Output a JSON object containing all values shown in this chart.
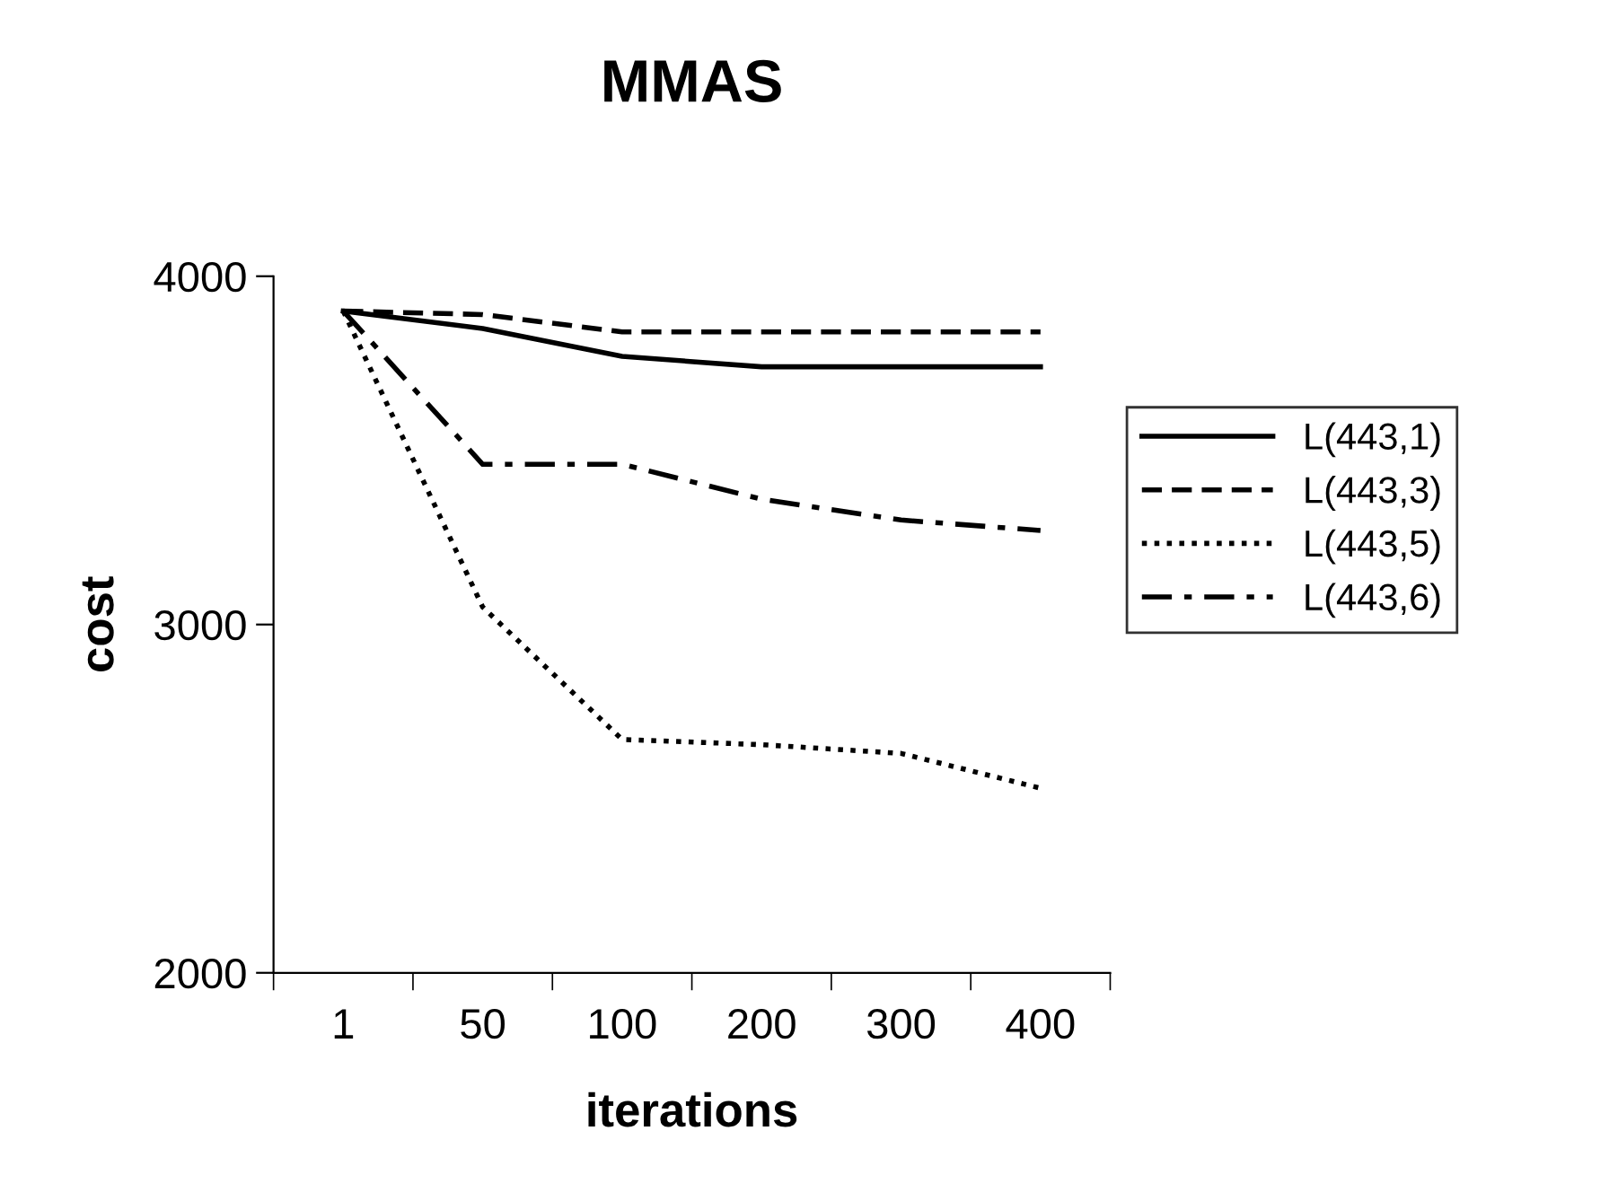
{
  "chart_data": {
    "type": "line",
    "title": "MMAS",
    "xlabel": "iterations",
    "ylabel": "cost",
    "categories": [
      "1",
      "50",
      "100",
      "200",
      "300",
      "400"
    ],
    "ylim": [
      2000,
      4000
    ],
    "yticks": [
      2000,
      3000,
      4000
    ],
    "grid": false,
    "legend": "right",
    "marker": "none",
    "series": [
      {
        "name": "L(443,1)",
        "color": "#000000",
        "line_style": "solid",
        "values": [
          3900,
          3850,
          3770,
          3740,
          3740,
          3740
        ]
      },
      {
        "name": "L(443,3)",
        "color": "#000000",
        "line_style": "dashed",
        "values": [
          3900,
          3890,
          3840,
          3840,
          3840,
          3840
        ]
      },
      {
        "name": "L(443,5)",
        "color": "#000000",
        "line_style": "dotted",
        "values": [
          3900,
          3050,
          2670,
          2655,
          2630,
          2530
        ]
      },
      {
        "name": "L(443,6)",
        "color": "#000000",
        "line_style": "dashdot",
        "values": [
          3900,
          3460,
          3460,
          3360,
          3300,
          3270
        ]
      }
    ]
  }
}
